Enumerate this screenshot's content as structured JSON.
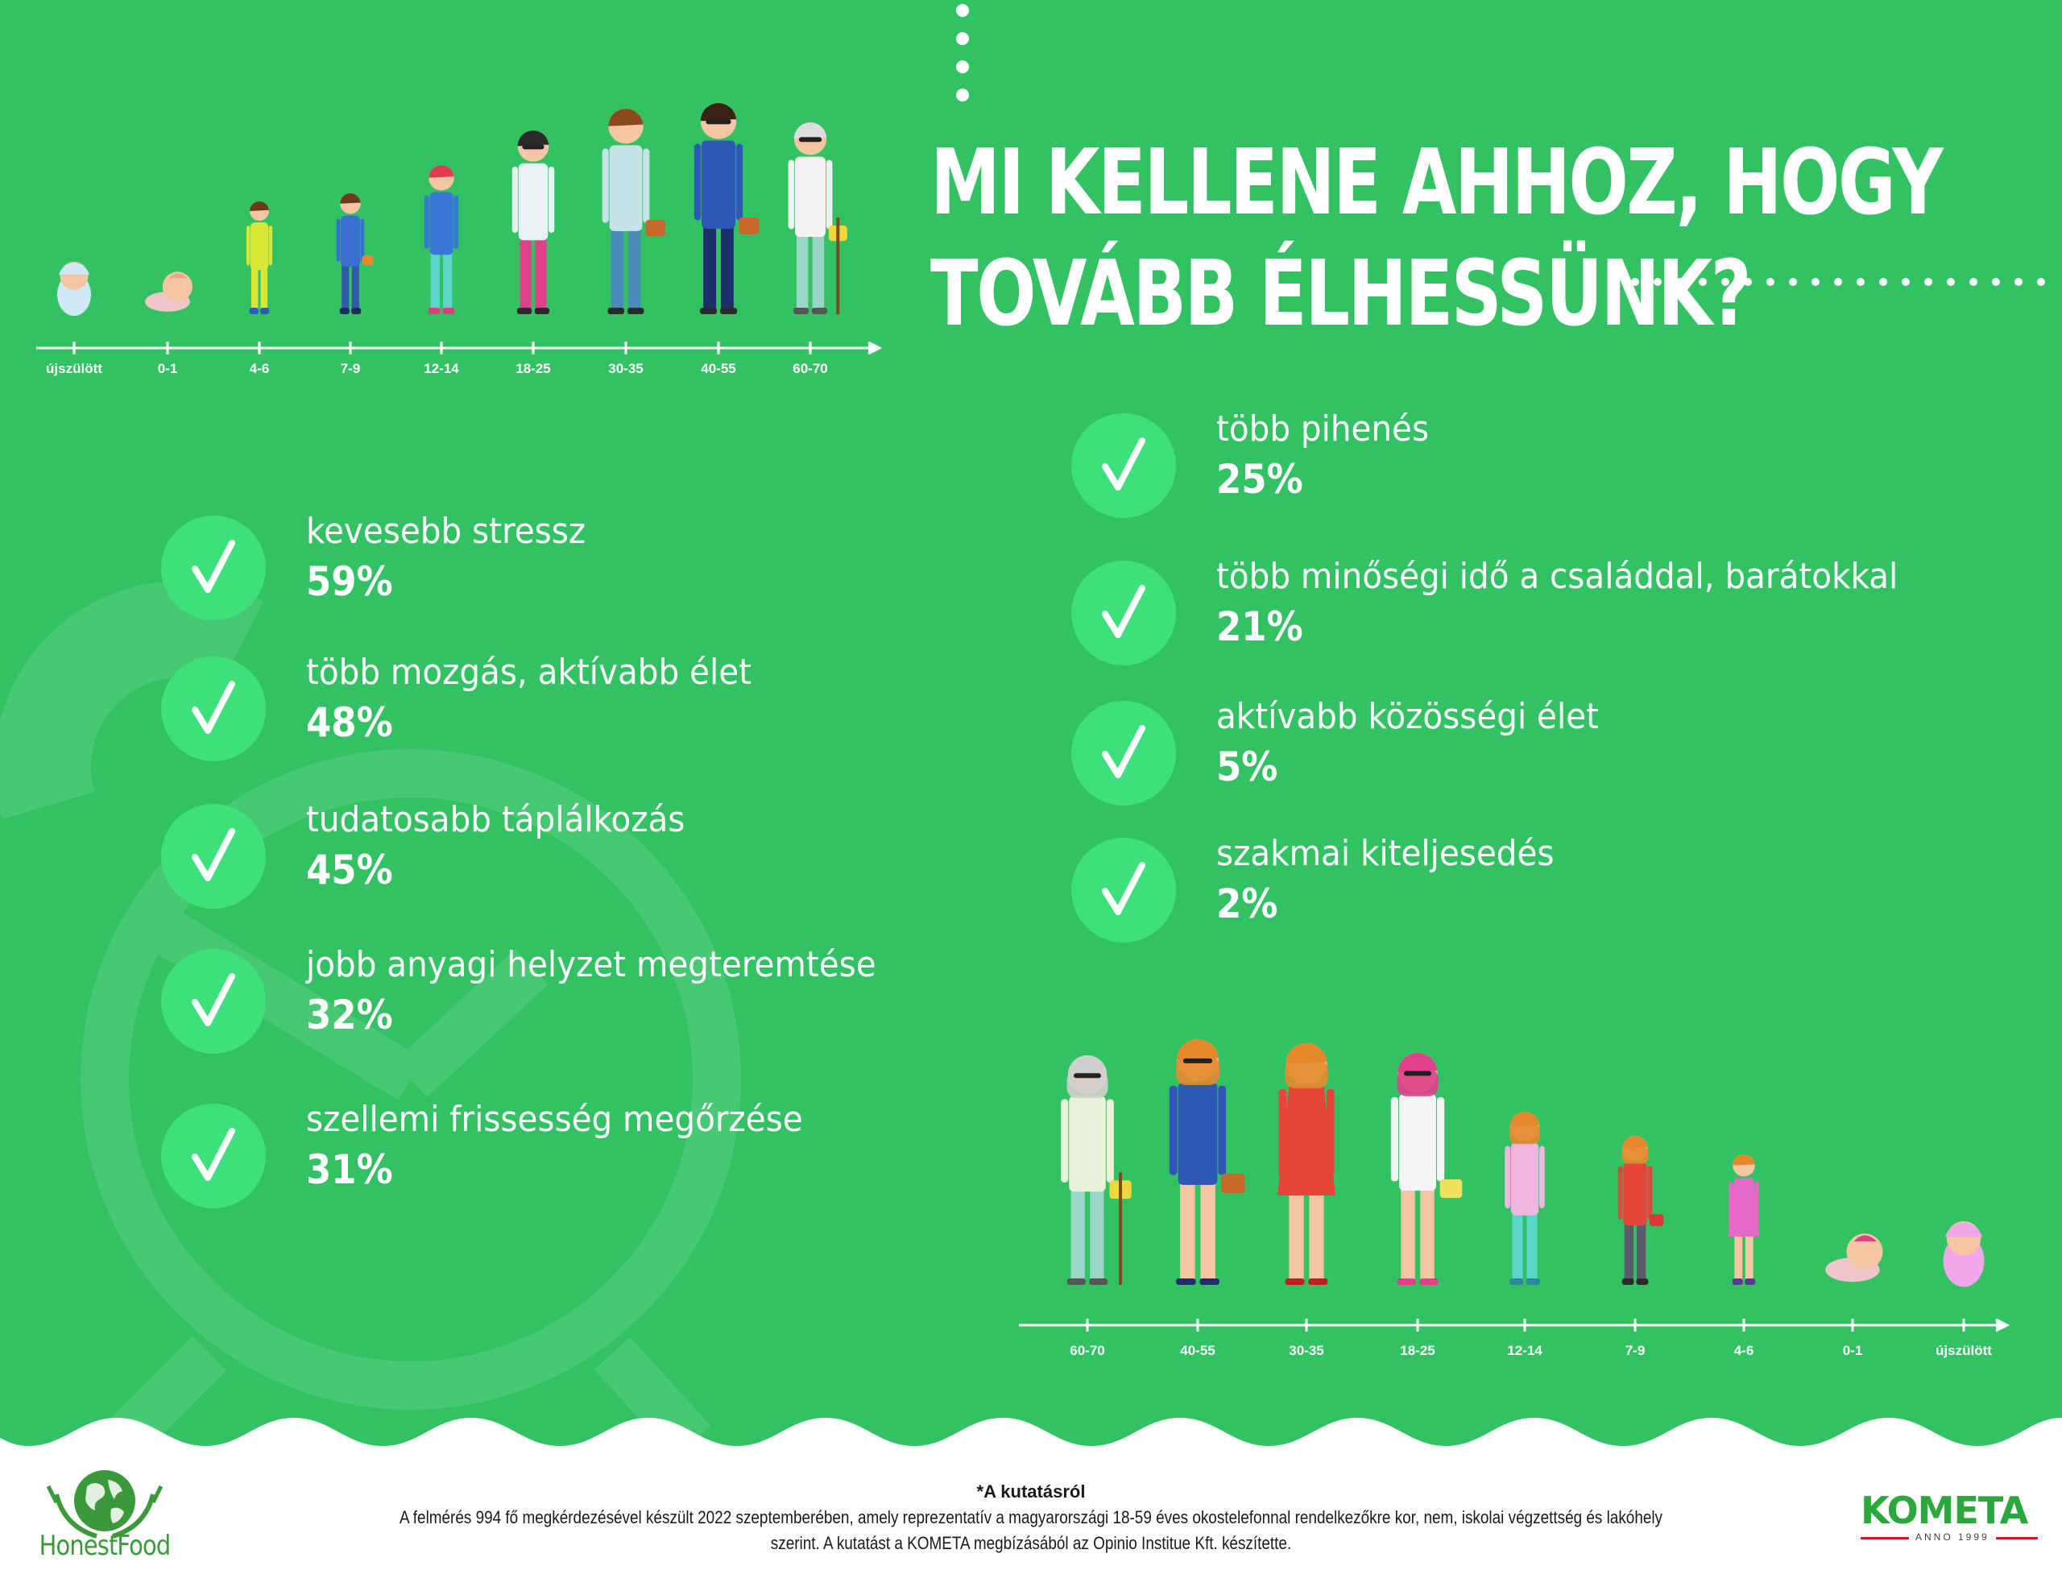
{
  "title": {
    "line1": "MI KELLENE AHHOZ, HOGY",
    "line2": "TOVÁBB ÉLHESSÜNK?"
  },
  "colors": {
    "background": "#33c263",
    "check_circle": "#3ee07c",
    "text": "#ffffff"
  },
  "timeline_top": {
    "ticks": [
      "újszülött",
      "0-1",
      "4-6",
      "7-9",
      "12-14",
      "18-25",
      "30-35",
      "40-55",
      "60-70"
    ]
  },
  "timeline_bottom": {
    "ticks": [
      "60-70",
      "40-55",
      "30-35",
      "18-25",
      "12-14",
      "7-9",
      "4-6",
      "0-1",
      "újszülött"
    ]
  },
  "left_items": [
    {
      "label": "kevesebb stressz",
      "value": "59%",
      "icon": "check-icon"
    },
    {
      "label": "több mozgás, aktívabb élet",
      "value": "48%",
      "icon": "check-icon"
    },
    {
      "label": "tudatosabb táplálkozás",
      "value": "45%",
      "icon": "check-icon"
    },
    {
      "label": "jobb anyagi helyzet megteremtése",
      "value": "32%",
      "icon": "check-icon"
    },
    {
      "label": "szellemi frissesség megőrzése",
      "value": "31%",
      "icon": "check-icon"
    }
  ],
  "right_items": [
    {
      "label": "több pihenés",
      "value": "25%",
      "icon": "check-icon"
    },
    {
      "label": "több minőségi idő a családdal, barátokkal",
      "value": "21%",
      "icon": "check-icon"
    },
    {
      "label": "aktívabb közösségi élet",
      "value": "5%",
      "icon": "check-icon"
    },
    {
      "label": "szakmai kiteljesedés",
      "value": "2%",
      "icon": "check-icon"
    }
  ],
  "footer": {
    "heading": "*A kutatásról",
    "line1": "A felmérés 994 fő megkérdezésével készült 2022 szeptemberében, amely reprezentatív a magyarországi 18-59 éves okostelefonnal rendelkezőkre kor, nem, iskolai végzettség és lakóhely",
    "line2": "szerint. A kutatást a KOMETA megbízásából az Opinio Institue Kft. készítette."
  },
  "logos": {
    "left": "HonestFood",
    "right": "KOMETA",
    "right_sub": "ANNO 1999"
  }
}
